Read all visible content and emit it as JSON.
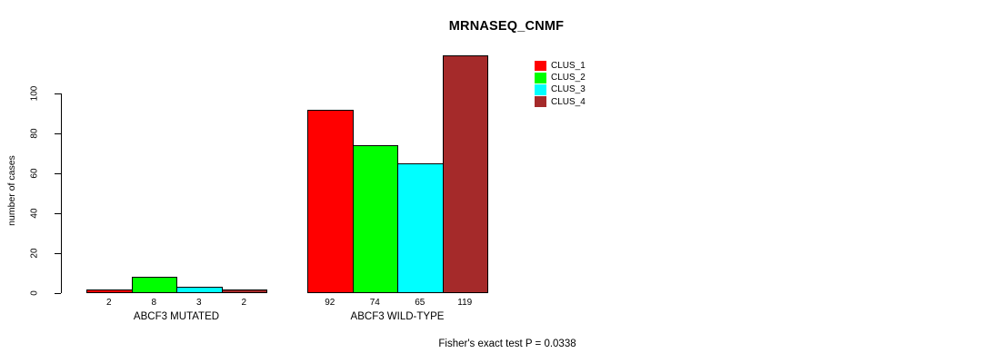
{
  "title": "MRNASEQ_CNMF",
  "ylabel": "number of cases",
  "annotation": "Fisher's exact test P = 0.0338",
  "legend": {
    "position": "top-right",
    "entries": [
      {
        "label": "CLUS_1",
        "color": "#FF0000"
      },
      {
        "label": "CLUS_2",
        "color": "#00FF00"
      },
      {
        "label": "CLUS_3",
        "color": "#00FFFF"
      },
      {
        "label": "CLUS_4",
        "color": "#A52A2A"
      }
    ]
  },
  "chart_data": {
    "type": "bar",
    "title": "MRNASEQ_CNMF",
    "ylabel": "number of cases",
    "xlabel": "",
    "categories": [
      "ABCF3 MUTATED",
      "ABCF3 WILD-TYPE"
    ],
    "series": [
      {
        "name": "CLUS_1",
        "color": "#FF0000",
        "values": [
          2,
          92
        ]
      },
      {
        "name": "CLUS_2",
        "color": "#00FF00",
        "values": [
          8,
          74
        ]
      },
      {
        "name": "CLUS_3",
        "color": "#00FFFF",
        "values": [
          3,
          65
        ]
      },
      {
        "name": "CLUS_4",
        "color": "#A52A2A",
        "values": [
          2,
          119
        ]
      }
    ],
    "bar_value_labels": [
      [
        2,
        8,
        3,
        2
      ],
      [
        92,
        74,
        65,
        119
      ]
    ],
    "yticks": [
      0,
      20,
      40,
      60,
      80,
      100
    ],
    "ylim": [
      0,
      120
    ],
    "grid": false,
    "legend_position": "top-right",
    "annotation": "Fisher's exact test P = 0.0338",
    "axis_color": "#000000",
    "background_color": "#FFFFFF"
  }
}
